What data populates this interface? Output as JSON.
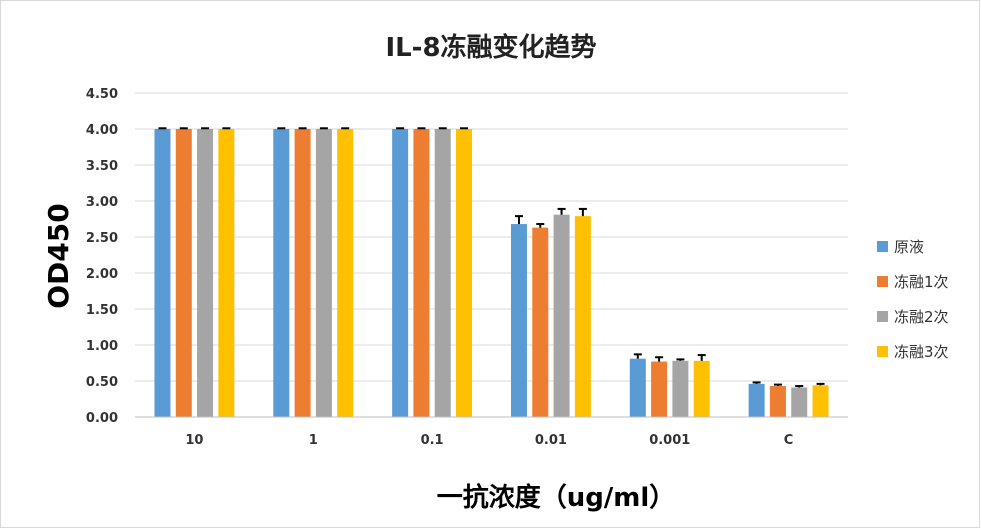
{
  "chart_data": {
    "type": "bar",
    "title": "IL-8冻融变化趋势",
    "xlabel": "一抗浓度（ug/ml）",
    "ylabel": "OD450",
    "categories": [
      "10",
      "1",
      "0.1",
      "0.01",
      "0.001",
      "C"
    ],
    "ylim": [
      0,
      4.5
    ],
    "yticks": [
      "0.00",
      "0.50",
      "1.00",
      "1.50",
      "2.00",
      "2.50",
      "3.00",
      "3.50",
      "4.00",
      "4.50"
    ],
    "grid": true,
    "legend_position": "right",
    "series": [
      {
        "name": "原液",
        "color": "#5B9BD5",
        "values": [
          4.0,
          4.0,
          4.0,
          2.68,
          0.81,
          0.46
        ],
        "errors": [
          0.01,
          0.01,
          0.01,
          0.11,
          0.06,
          0.02
        ]
      },
      {
        "name": "冻融1次",
        "color": "#ED7D31",
        "values": [
          4.0,
          4.0,
          4.0,
          2.63,
          0.77,
          0.43
        ],
        "errors": [
          0.01,
          0.01,
          0.01,
          0.05,
          0.06,
          0.02
        ]
      },
      {
        "name": "冻融2次",
        "color": "#A5A5A5",
        "values": [
          4.0,
          4.0,
          4.0,
          2.81,
          0.78,
          0.41
        ],
        "errors": [
          0.01,
          0.01,
          0.01,
          0.08,
          0.02,
          0.02
        ]
      },
      {
        "name": "冻融3次",
        "color": "#FFC000",
        "values": [
          4.0,
          4.0,
          4.0,
          2.79,
          0.78,
          0.44
        ],
        "errors": [
          0.01,
          0.01,
          0.01,
          0.1,
          0.08,
          0.02
        ]
      }
    ]
  }
}
